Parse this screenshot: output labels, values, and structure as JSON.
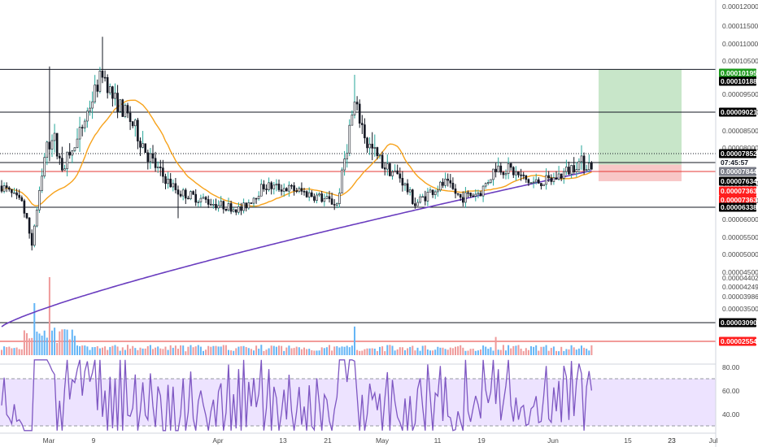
{
  "chart_data": {
    "type": "candlestick",
    "price_axis": {
      "ticks": [
        "0.00012000",
        "0.00011500",
        "0.00011000",
        "0.00010500",
        "0.00009500",
        "0.00009000",
        "0.00008500",
        "0.00008000",
        "0.00007000",
        "0.00006500",
        "0.00006000",
        "0.00005500",
        "0.00005000",
        "0.00004500",
        "0.00004402",
        "0.00004249",
        "0.00003986",
        "0.00003500"
      ]
    },
    "x_axis": {
      "labels": [
        "Mar",
        "9",
        "23",
        "Apr",
        "13",
        "21",
        "May",
        "11",
        "19",
        "Jun",
        "15",
        "23",
        "Jul"
      ]
    },
    "horizontal_levels": [
      {
        "value": "0.00010195",
        "color": "#131722"
      },
      {
        "value": "0.00009021",
        "color": "#131722"
      },
      {
        "value": "0.00007634",
        "color": "#131722"
      },
      {
        "value": "0.00006338",
        "color": "#131722"
      },
      {
        "value": "0.00007363",
        "color": "#e53935"
      },
      {
        "value": "0.00003090",
        "color": "#131722"
      },
      {
        "value": "0.00002554",
        "color": "#e53935"
      }
    ],
    "price_labels": [
      {
        "text": "0.00010195",
        "bg": "#1e9b1e",
        "fg": "#ffffff"
      },
      {
        "text": "0.00010188",
        "bg": "#000000",
        "fg": "#ffffff"
      },
      {
        "text": "0.00009021",
        "bg": "#000000",
        "fg": "#ffffff"
      },
      {
        "text": "0.00007852",
        "bg": "#000000",
        "fg": "#ffffff"
      },
      {
        "text": "07:45:57",
        "bg": "#ffffff",
        "fg": "#131722"
      },
      {
        "text": "0.00007844",
        "bg": "#787b86",
        "fg": "#ffffff"
      },
      {
        "text": "0.00007634",
        "bg": "#000000",
        "fg": "#ffffff"
      },
      {
        "text": "0.00007363",
        "bg": "#ff1e1e",
        "fg": "#ffffff"
      },
      {
        "text": "0.00007363",
        "bg": "#ff1e1e",
        "fg": "#ffffff"
      },
      {
        "text": "0.00006338",
        "bg": "#000000",
        "fg": "#ffffff"
      },
      {
        "text": "0.00003090",
        "bg": "#000000",
        "fg": "#ffffff"
      },
      {
        "text": "0.00002554",
        "bg": "#ff1e1e",
        "fg": "#ffffff"
      }
    ],
    "position_tool": {
      "entry": 7.852e-05,
      "target": 0.00010195,
      "stop": 7.363e-05
    },
    "moving_averages": [
      {
        "color": "#f7a21b"
      },
      {
        "color": "#6a3dbf"
      }
    ],
    "rsi": {
      "ticks": [
        "80.00",
        "60.00",
        "40.00"
      ],
      "upper_band": 70,
      "lower_band": 30,
      "current": 60,
      "line_color": "#7e57c2",
      "band_fill": "#ede3ff"
    },
    "colors": {
      "up": "#26a69a",
      "down": "#131722",
      "vol_up": "#64b5f6",
      "vol_down": "#ef9a9a",
      "target_zone": "#c8e6c9",
      "stop_zone": "#f8c7c7"
    }
  }
}
